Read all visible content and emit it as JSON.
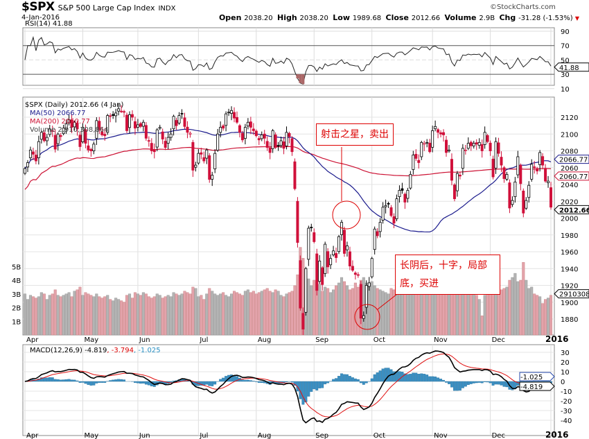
{
  "header": {
    "symbol": "$SPX",
    "name": "S&P 500 Large Cap Index",
    "exchange": "INDX",
    "date": "4-Jan-2016",
    "brand": "©StockCharts.com",
    "quote": [
      {
        "k": "Open",
        "v": "2038.20"
      },
      {
        "k": "High",
        "v": "2038.20"
      },
      {
        "k": "Low",
        "v": "1989.68"
      },
      {
        "k": "Close",
        "v": "2012.66"
      },
      {
        "k": "Volume",
        "v": "2.9B"
      },
      {
        "k": "Chg",
        "v": "-31.28 (-1.53%)"
      }
    ]
  },
  "rsi": {
    "label": "RSI(14) 41.88",
    "value_tag": "41.88",
    "ticks": [
      "90",
      "70",
      "50",
      "30",
      "10"
    ]
  },
  "main": {
    "legend": "$SPX (Daily) 2012.66 (4 Jan)",
    "ma50": "MA(50) 2066.77",
    "ma200": "MA(200) 2060.77",
    "volume": "Volume 2,910,308,864",
    "tags": {
      "ma50": "2066.77",
      "ma200": "2060.77",
      "close": "2012.66",
      "volume": "2910308"
    },
    "price_ticks": [
      "2120",
      "2100",
      "2080",
      "2060",
      "2040",
      "2020",
      "2000",
      "1980",
      "1960",
      "1940",
      "1920",
      "1900",
      "1880"
    ],
    "vol_ticks": [
      "5B",
      "4B",
      "3B",
      "2B",
      "1B"
    ]
  },
  "macd": {
    "label_a": "MACD(12,26,9) -4.819",
    "label_b": ", -3.794",
    "label_c": ", -1.025",
    "tags": {
      "hist": "-1.025",
      "macd": "-4.819"
    },
    "ticks": [
      "30",
      "20",
      "10",
      "0",
      "-10",
      "-20",
      "-30",
      "-40"
    ]
  },
  "annotations": {
    "sell": "射击之星，卖出",
    "buy_line1": "长阴后，十字，局部",
    "buy_line2": "底，买进"
  },
  "colors": {
    "ma50": "#1a1a8c",
    "ma200": "#cc1133",
    "down": "#d0103a",
    "vol_down": "#e3a3ab",
    "vol_up": "#b4b4b4",
    "hist": "#3b8fc2"
  },
  "chart_data": {
    "type": "candlestick",
    "x_labels": [
      "Apr",
      "May",
      "Jun",
      "Jul",
      "Aug",
      "Sep",
      "Oct",
      "Nov",
      "Dec",
      "2016"
    ],
    "month_lengths": [
      21,
      20,
      22,
      21,
      21,
      21,
      22,
      21,
      22,
      1
    ],
    "closes": [
      2059,
      2066,
      2081,
      2076,
      2068,
      2091,
      2102,
      2092,
      2096,
      2106,
      2104,
      2082,
      2100,
      2097,
      2107,
      2112,
      2117,
      2108,
      2114,
      2106,
      2085,
      2108,
      2089,
      2081,
      2080,
      2088,
      2116,
      2105,
      2099,
      2098,
      2122,
      2121,
      2122,
      2125,
      2130,
      2127,
      2126,
      2104,
      2123,
      2120,
      2107,
      2111,
      2109,
      2114,
      2095,
      2092,
      2080,
      2079,
      2105,
      2108,
      2094,
      2084,
      2096,
      2100,
      2121,
      2110,
      2122,
      2124,
      2109,
      2102,
      2101,
      2057,
      2063,
      2077,
      2076,
      2068,
      2081,
      2046,
      2051,
      2077,
      2100,
      2108,
      2107,
      2124,
      2126,
      2128,
      2119,
      2114,
      2102,
      2093,
      2108,
      2114,
      2108,
      2104,
      2098,
      2093,
      2099,
      2095,
      2084,
      2078,
      2104,
      2084,
      2086,
      2092,
      2083,
      2102,
      2097,
      2079,
      2035,
      1971,
      1893,
      1868,
      1940,
      1988,
      1989,
      1972,
      1914,
      1949,
      1921,
      1969,
      1942,
      1952,
      1961,
      1953,
      1978,
      1995,
      1958,
      1967,
      1943,
      1938,
      1933,
      1932,
      1881,
      1884,
      1920,
      1923,
      1952,
      1987,
      1979,
      1995,
      2013,
      2015,
      2017,
      2003,
      1994,
      2023,
      2033,
      2033,
      2019,
      2033,
      2052,
      2075,
      2071,
      2066,
      2090,
      2089,
      2090,
      2079,
      2104,
      2109,
      2102,
      2100,
      2099,
      2078,
      2081,
      2045,
      2023,
      2053,
      2050,
      2083,
      2081,
      2089,
      2086,
      2089,
      2088,
      2090,
      2080,
      2102,
      2091,
      2080,
      2049,
      2091,
      2077,
      2063,
      2047,
      2052,
      2012,
      2021,
      2043,
      2073,
      2041,
      2006,
      2021,
      2039,
      2064,
      2060,
      2056,
      2078,
      2063,
      2044,
      2044,
      2013
    ],
    "volume_b": [
      3.0,
      2.6,
      2.9,
      2.8,
      2.7,
      2.8,
      3.1,
      3.0,
      2.6,
      2.9,
      3.0,
      3.3,
      2.9,
      2.8,
      2.9,
      3.0,
      3.1,
      2.8,
      3.2,
      3.3,
      3.5,
      2.9,
      3.1,
      3.0,
      2.9,
      2.8,
      3.0,
      2.8,
      2.7,
      2.8,
      2.9,
      2.6,
      2.5,
      2.7,
      2.6,
      2.5,
      2.4,
      2.9,
      3.0,
      2.7,
      3.1,
      3.0,
      2.9,
      3.1,
      3.0,
      2.8,
      2.7,
      2.8,
      3.0,
      2.9,
      2.7,
      2.8,
      2.9,
      2.8,
      3.1,
      3.0,
      2.9,
      3.0,
      3.2,
      3.1,
      3.0,
      3.5,
      3.4,
      2.8,
      2.9,
      2.6,
      3.0,
      3.4,
      3.2,
      3.0,
      2.9,
      3.0,
      3.1,
      2.9,
      2.8,
      3.0,
      3.2,
      3.1,
      3.0,
      2.9,
      3.2,
      3.3,
      3.1,
      3.2,
      3.0,
      3.1,
      3.2,
      3.3,
      3.4,
      3.2,
      3.1,
      3.3,
      3.2,
      2.9,
      2.8,
      3.0,
      3.1,
      3.2,
      3.6,
      4.4,
      6.4,
      5.6,
      4.7,
      4.1,
      3.6,
      4.0,
      3.9,
      3.7,
      3.2,
      3.5,
      3.4,
      3.1,
      3.3,
      3.6,
      3.8,
      4.2,
      3.9,
      3.6,
      3.3,
      3.4,
      3.8,
      3.5,
      4.0,
      4.2,
      3.8,
      3.5,
      3.9,
      3.6,
      3.4,
      3.3,
      3.2,
      3.1,
      3.0,
      3.4,
      3.3,
      3.0,
      3.1,
      3.2,
      3.3,
      3.1,
      3.4,
      3.6,
      3.3,
      3.1,
      3.3,
      3.2,
      3.4,
      3.5,
      3.4,
      3.3,
      3.2,
      3.5,
      3.3,
      3.1,
      3.0,
      3.4,
      3.8,
      3.6,
      3.5,
      3.2,
      3.0,
      3.1,
      3.3,
      3.2,
      2.9,
      2.6,
      1.4,
      2.9,
      3.0,
      3.6,
      3.7,
      3.5,
      3.4,
      3.3,
      3.4,
      3.5,
      4.0,
      4.2,
      4.5,
      3.9,
      4.0,
      5.3,
      4.0,
      3.4,
      3.5,
      3.0,
      2.9,
      2.8,
      2.3,
      2.6,
      2.7,
      2.9
    ],
    "ylim_price": [
      1870,
      2135
    ],
    "ylim_rsi": [
      0,
      100
    ],
    "ylim_macd": [
      -45,
      35
    ]
  }
}
